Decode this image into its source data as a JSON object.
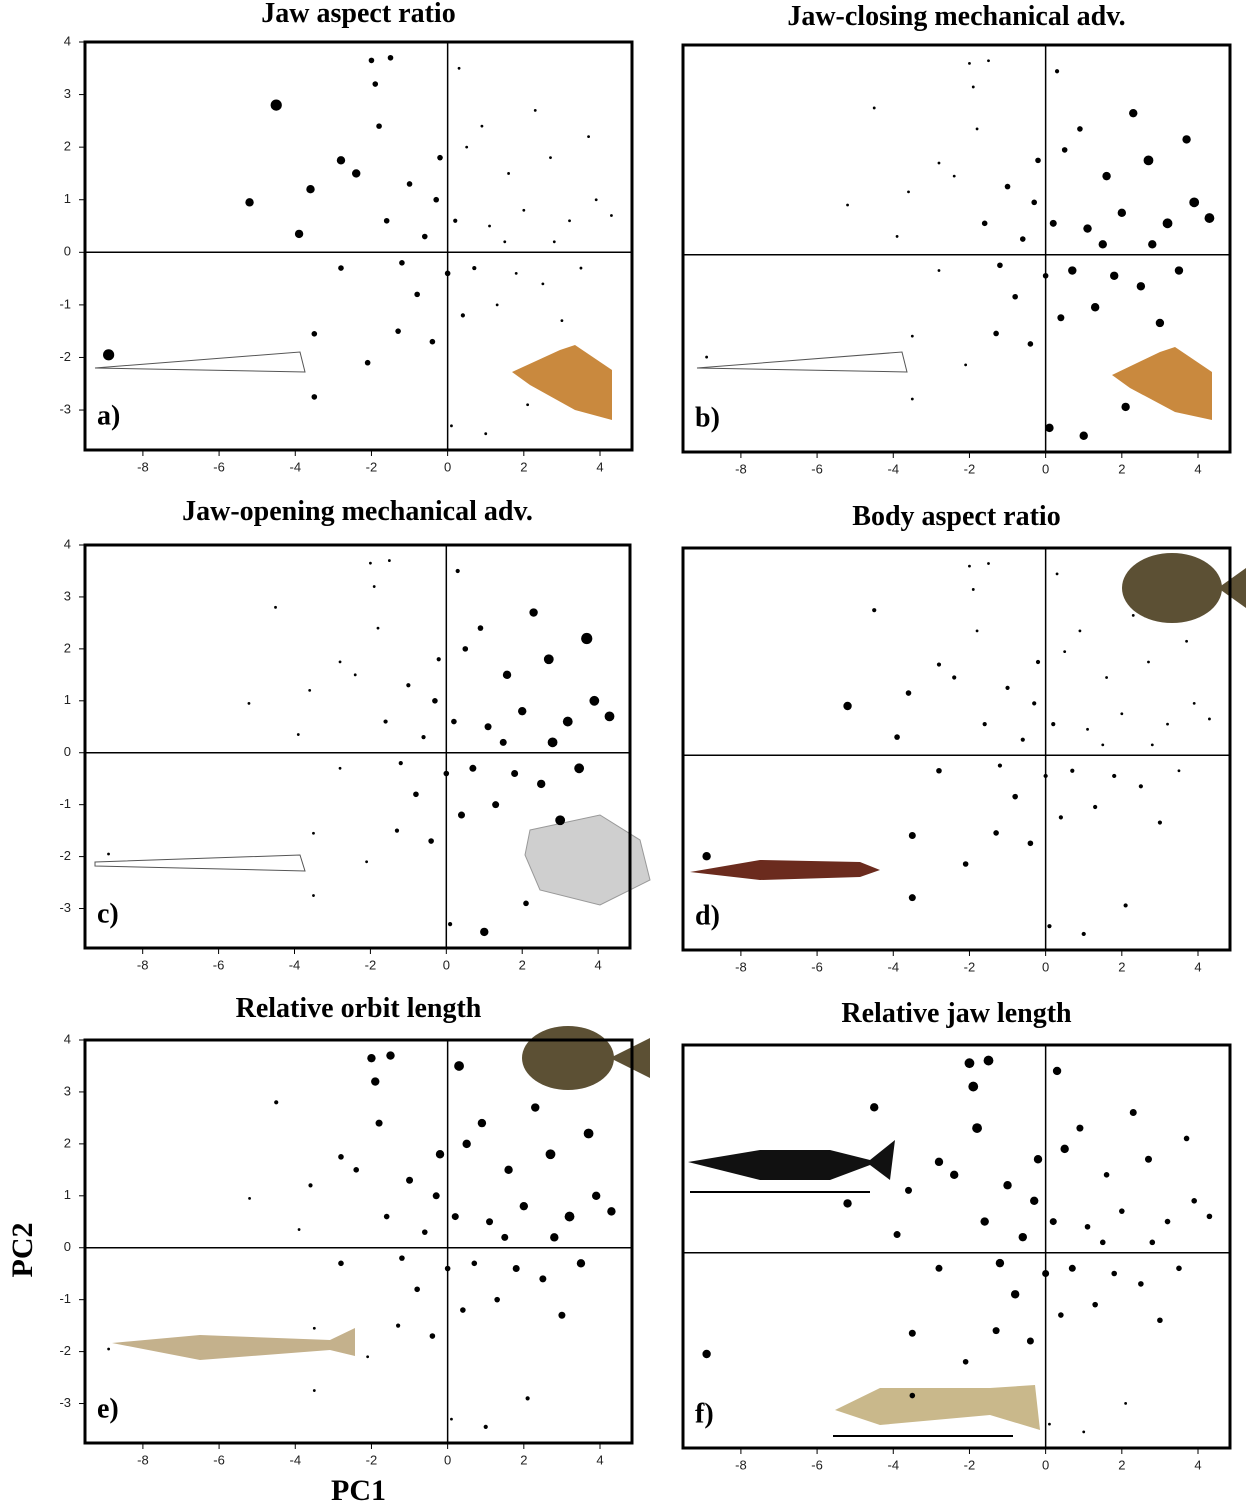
{
  "chart_data": [
    {
      "type": "scatter",
      "title": "Jaw aspect ratio",
      "panel_label": "a)",
      "x": [
        -8.9,
        -5.2,
        -4.5,
        -3.6,
        -3.9,
        -3.5,
        -3.5,
        -2.8,
        -2.8,
        -2.4,
        -2.1,
        -2,
        -1.9,
        -1.8,
        -1.5,
        -1.6,
        -1.2,
        -1,
        -0.8,
        -0.6,
        -0.4,
        -0.2,
        0,
        0.2,
        0.3,
        0.4,
        0.5,
        0.7,
        0.9,
        1,
        1.1,
        1.3,
        1.6,
        1.8,
        2,
        2.1,
        2.3,
        2.5,
        2.7,
        2.8,
        3,
        3.2,
        3.5,
        3.7,
        3.9,
        4.3,
        -1.3,
        0.1,
        -0.3,
        1.5
      ],
      "values": [
        -1.95,
        0.95,
        2.8,
        1.2,
        0.35,
        -1.55,
        -2.75,
        1.75,
        -0.3,
        1.5,
        -2.1,
        3.65,
        3.2,
        2.4,
        3.7,
        0.6,
        -0.2,
        1.3,
        -0.8,
        0.3,
        -1.7,
        1.8,
        -0.4,
        0.6,
        3.5,
        -1.2,
        2,
        -0.3,
        2.4,
        -3.45,
        0.5,
        -1,
        1.5,
        -0.4,
        0.8,
        -2.9,
        2.7,
        -0.6,
        1.8,
        0.2,
        -1.3,
        0.6,
        -0.3,
        2.2,
        1,
        0.7,
        -1.5,
        -3.3,
        1,
        0.2
      ],
      "sizes": [
        4,
        3,
        4,
        3,
        3,
        2,
        2,
        3,
        2,
        3,
        2,
        2,
        2,
        2,
        2,
        2,
        2,
        2,
        2,
        2,
        2,
        2,
        2,
        1.5,
        1,
        1.5,
        1,
        1.5,
        1,
        1,
        1,
        1,
        1,
        1,
        1,
        1,
        1,
        1,
        1,
        1,
        1,
        1,
        1,
        1,
        1,
        1,
        2,
        1,
        2,
        1
      ],
      "xlim": [
        -9.52,
        4.84
      ],
      "ylim": [
        -3.76,
        4.0
      ],
      "xticks": [
        -8,
        -6,
        -4,
        -2,
        0,
        2,
        4
      ],
      "yticks": [
        -3,
        -2,
        -1,
        0,
        1,
        2,
        3,
        4
      ],
      "color": "#000000"
    },
    {
      "type": "scatter",
      "title": "Jaw-closing mechanical adv.",
      "panel_label": "b)",
      "x": [
        -8.9,
        -5.2,
        -4.5,
        -3.6,
        -3.9,
        -3.5,
        -3.5,
        -2.8,
        -2.8,
        -2.4,
        -2.1,
        -2,
        -1.9,
        -1.8,
        -1.5,
        -1.6,
        -1.2,
        -1,
        -0.8,
        -0.6,
        -0.4,
        -0.2,
        0,
        0.2,
        0.3,
        0.4,
        0.5,
        0.7,
        0.9,
        1,
        1.1,
        1.3,
        1.6,
        1.8,
        2,
        2.1,
        2.3,
        2.5,
        2.7,
        2.8,
        3,
        3.2,
        3.5,
        3.7,
        3.9,
        4.3,
        -1.3,
        0.1,
        -0.3,
        1.5
      ],
      "values": [
        -1.95,
        0.95,
        2.8,
        1.2,
        0.35,
        -1.55,
        -2.75,
        1.75,
        -0.3,
        1.5,
        -2.1,
        3.65,
        3.2,
        2.4,
        3.7,
        0.6,
        -0.2,
        1.3,
        -0.8,
        0.3,
        -1.7,
        1.8,
        -0.4,
        0.6,
        3.5,
        -1.2,
        2,
        -0.3,
        2.4,
        -3.45,
        0.5,
        -1,
        1.5,
        -0.4,
        0.8,
        -2.9,
        2.7,
        -0.6,
        1.8,
        0.2,
        -1.3,
        0.6,
        -0.3,
        2.2,
        1,
        0.7,
        -1.5,
        -3.3,
        1,
        0.2
      ],
      "sizes": [
        1,
        1,
        1,
        1,
        1,
        1,
        1,
        1,
        1,
        1,
        1,
        1,
        1,
        1,
        1,
        2,
        2,
        2,
        2,
        2,
        2,
        2,
        2,
        2.5,
        1.5,
        2.5,
        2,
        3,
        2,
        3,
        3,
        3,
        3,
        3,
        3,
        3,
        3,
        3,
        3.5,
        3,
        3,
        3.5,
        3,
        3,
        3.5,
        3.5,
        2,
        3,
        2,
        3
      ],
      "xlim": [
        -9.52,
        4.84
      ],
      "ylim": [
        -3.76,
        4.0
      ],
      "xticks": [
        -8,
        -6,
        -4,
        -2,
        0,
        2,
        4
      ],
      "color": "#000000"
    },
    {
      "type": "scatter",
      "title": "Jaw-opening mechanical adv.",
      "panel_label": "c)",
      "x": [
        -8.9,
        -5.2,
        -4.5,
        -3.6,
        -3.9,
        -3.5,
        -3.5,
        -2.8,
        -2.8,
        -2.4,
        -2.1,
        -2,
        -1.9,
        -1.8,
        -1.5,
        -1.6,
        -1.2,
        -1,
        -0.8,
        -0.6,
        -0.4,
        -0.2,
        0,
        0.2,
        0.3,
        0.4,
        0.5,
        0.7,
        0.9,
        1,
        1.1,
        1.3,
        1.6,
        1.8,
        2,
        2.1,
        2.3,
        2.5,
        2.7,
        2.8,
        3,
        3.2,
        3.5,
        3.7,
        3.9,
        4.3,
        -1.3,
        0.1,
        -0.3,
        1.5
      ],
      "values": [
        -1.95,
        0.95,
        2.8,
        1.2,
        0.35,
        -1.55,
        -2.75,
        1.75,
        -0.3,
        1.5,
        -2.1,
        3.65,
        3.2,
        2.4,
        3.7,
        0.6,
        -0.2,
        1.3,
        -0.8,
        0.3,
        -1.7,
        1.8,
        -0.4,
        0.6,
        3.5,
        -1.2,
        2,
        -0.3,
        2.4,
        -3.45,
        0.5,
        -1,
        1.5,
        -0.4,
        0.8,
        -2.9,
        2.7,
        -0.6,
        1.8,
        0.2,
        -1.3,
        0.6,
        -0.3,
        2.2,
        1,
        0.7,
        -1.5,
        -3.3,
        1,
        0.2
      ],
      "sizes": [
        1,
        1,
        1,
        1,
        1,
        1,
        1,
        1,
        1,
        1,
        1,
        1,
        1,
        1,
        1,
        1.5,
        1.5,
        1.5,
        2,
        1.5,
        2,
        1.5,
        2,
        2,
        1.5,
        2.5,
        2,
        2.5,
        2,
        3,
        2.5,
        2.5,
        3,
        2.5,
        3,
        2,
        3,
        3,
        3.5,
        3.5,
        3.5,
        3.5,
        3.5,
        4,
        3.5,
        3.5,
        1.5,
        1.5,
        2,
        2.5
      ],
      "xlim": [
        -9.52,
        4.84
      ],
      "ylim": [
        -3.76,
        4.0
      ],
      "xticks": [
        -8,
        -6,
        -4,
        -2,
        0,
        2,
        4
      ],
      "yticks": [
        -3,
        -2,
        -1,
        0,
        1,
        2,
        3,
        4
      ],
      "color": "#000000"
    },
    {
      "type": "scatter",
      "title": "Body aspect ratio",
      "panel_label": "d)",
      "x": [
        -8.9,
        -5.2,
        -4.5,
        -3.6,
        -3.9,
        -3.5,
        -3.5,
        -2.8,
        -2.8,
        -2.4,
        -2.1,
        -2,
        -1.9,
        -1.8,
        -1.5,
        -1.6,
        -1.2,
        -1,
        -0.8,
        -0.6,
        -0.4,
        -0.2,
        0,
        0.2,
        0.3,
        0.4,
        0.5,
        0.7,
        0.9,
        1,
        1.1,
        1.3,
        1.6,
        1.8,
        2,
        2.1,
        2.3,
        2.5,
        2.7,
        2.8,
        3,
        3.2,
        3.5,
        3.7,
        3.9,
        4.3,
        -1.3,
        0.1,
        -0.3,
        1.5
      ],
      "values": [
        -1.95,
        0.95,
        2.8,
        1.2,
        0.35,
        -1.55,
        -2.75,
        1.75,
        -0.3,
        1.5,
        -2.1,
        3.65,
        3.2,
        2.4,
        3.7,
        0.6,
        -0.2,
        1.3,
        -0.8,
        0.3,
        -1.7,
        1.8,
        -0.4,
        0.6,
        3.5,
        -1.2,
        2,
        -0.3,
        2.4,
        -3.45,
        0.5,
        -1,
        1.5,
        -0.4,
        0.8,
        -2.9,
        2.7,
        -0.6,
        1.8,
        0.2,
        -1.3,
        0.6,
        -0.3,
        2.2,
        1,
        0.7,
        -1.5,
        -3.3,
        1,
        0.2
      ],
      "sizes": [
        3,
        3,
        1.5,
        2,
        2,
        2.5,
        2.5,
        1.5,
        2,
        1.5,
        2,
        1,
        1,
        1,
        1,
        1.5,
        1.5,
        1.5,
        2,
        1.5,
        2,
        1.5,
        1.5,
        1.5,
        1,
        1.5,
        1,
        1.5,
        1,
        1.5,
        1,
        1.5,
        1,
        1.5,
        1,
        1.5,
        1,
        1.5,
        1,
        1,
        1.5,
        1,
        1,
        1,
        1,
        1,
        2,
        1.5,
        1.5,
        1
      ],
      "xlim": [
        -9.52,
        4.84
      ],
      "ylim": [
        -3.76,
        4.0
      ],
      "xticks": [
        -8,
        -6,
        -4,
        -2,
        0,
        2,
        4
      ],
      "color": "#000000"
    },
    {
      "type": "scatter",
      "title": "Relative orbit length",
      "panel_label": "e)",
      "xlabel": "PC1",
      "ylabel": "PC2",
      "x": [
        -8.9,
        -5.2,
        -4.5,
        -3.6,
        -3.9,
        -3.5,
        -3.5,
        -2.8,
        -2.8,
        -2.4,
        -2.1,
        -2,
        -1.9,
        -1.8,
        -1.5,
        -1.6,
        -1.2,
        -1,
        -0.8,
        -0.6,
        -0.4,
        -0.2,
        0,
        0.2,
        0.3,
        0.4,
        0.5,
        0.7,
        0.9,
        1,
        1.1,
        1.3,
        1.6,
        1.8,
        2,
        2.1,
        2.3,
        2.5,
        2.7,
        2.8,
        3,
        3.2,
        3.5,
        3.7,
        3.9,
        4.3,
        -1.3,
        0.1,
        -0.3,
        1.5
      ],
      "values": [
        -1.95,
        0.95,
        2.8,
        1.2,
        0.35,
        -1.55,
        -2.75,
        1.75,
        -0.3,
        1.5,
        -2.1,
        3.65,
        3.2,
        2.4,
        3.7,
        0.6,
        -0.2,
        1.3,
        -0.8,
        0.3,
        -1.7,
        1.8,
        -0.4,
        0.6,
        3.5,
        -1.2,
        2,
        -0.3,
        2.4,
        -3.45,
        0.5,
        -1,
        1.5,
        -0.4,
        0.8,
        -2.9,
        2.7,
        -0.6,
        1.8,
        0.2,
        -1.3,
        0.6,
        -0.3,
        2.2,
        1,
        0.7,
        -1.5,
        -3.3,
        1,
        0.2
      ],
      "sizes": [
        1,
        1,
        1.5,
        1.5,
        1,
        1,
        1,
        2,
        2,
        2,
        1,
        3,
        3,
        2.5,
        3,
        2,
        2,
        2.5,
        2,
        2,
        2,
        3,
        2,
        2.5,
        3.5,
        2,
        3,
        2,
        3,
        1.5,
        2.5,
        2,
        3,
        2.5,
        3,
        1.5,
        3,
        2.5,
        3.5,
        3,
        2.5,
        3.5,
        3,
        3.5,
        3,
        3,
        1.5,
        1,
        2.5,
        2.5
      ],
      "xlim": [
        -9.52,
        4.84
      ],
      "ylim": [
        -3.76,
        4.0
      ],
      "xticks": [
        -8,
        -6,
        -4,
        -2,
        0,
        2,
        4
      ],
      "yticks": [
        -3,
        -2,
        -1,
        0,
        1,
        2,
        3,
        4
      ],
      "color": "#000000"
    },
    {
      "type": "scatter",
      "title": "Relative jaw length",
      "panel_label": "f)",
      "x": [
        -8.9,
        -5.2,
        -4.5,
        -3.6,
        -3.9,
        -3.5,
        -3.5,
        -2.8,
        -2.8,
        -2.4,
        -2.1,
        -2,
        -1.9,
        -1.8,
        -1.5,
        -1.6,
        -1.2,
        -1,
        -0.8,
        -0.6,
        -0.4,
        -0.2,
        0,
        0.2,
        0.3,
        0.4,
        0.5,
        0.7,
        0.9,
        1,
        1.1,
        1.3,
        1.6,
        1.8,
        2,
        2.1,
        2.3,
        2.5,
        2.7,
        2.8,
        3,
        3.2,
        3.5,
        3.7,
        3.9,
        4.3,
        -1.3,
        0.1,
        -0.3,
        1.5
      ],
      "values": [
        -1.95,
        0.95,
        2.8,
        1.2,
        0.35,
        -1.55,
        -2.75,
        1.75,
        -0.3,
        1.5,
        -2.1,
        3.65,
        3.2,
        2.4,
        3.7,
        0.6,
        -0.2,
        1.3,
        -0.8,
        0.3,
        -1.7,
        1.8,
        -0.4,
        0.6,
        3.5,
        -1.2,
        2,
        -0.3,
        2.4,
        -3.45,
        0.5,
        -1,
        1.5,
        -0.4,
        0.8,
        -2.9,
        2.7,
        -0.6,
        1.8,
        0.2,
        -1.3,
        0.6,
        -0.3,
        2.2,
        1,
        0.7,
        -1.5,
        -3.3,
        1,
        0.2
      ],
      "sizes": [
        3,
        3,
        3,
        2.5,
        2.5,
        2.5,
        2,
        3,
        2.5,
        3,
        2,
        3.5,
        3.5,
        3.5,
        3.5,
        3,
        3,
        3,
        3,
        3,
        2.5,
        3,
        2.5,
        2.5,
        3,
        2,
        3,
        2.5,
        2.5,
        1,
        2,
        2,
        2,
        2,
        2,
        1,
        2.5,
        2,
        2.5,
        2,
        2,
        2,
        2,
        2,
        2,
        2,
        2.5,
        1,
        3,
        2
      ],
      "xlim": [
        -9.52,
        4.84
      ],
      "ylim": [
        -3.76,
        4.0
      ],
      "xticks": [
        -8,
        -6,
        -4,
        -2,
        0,
        2,
        4
      ],
      "color": "#000000"
    }
  ]
}
